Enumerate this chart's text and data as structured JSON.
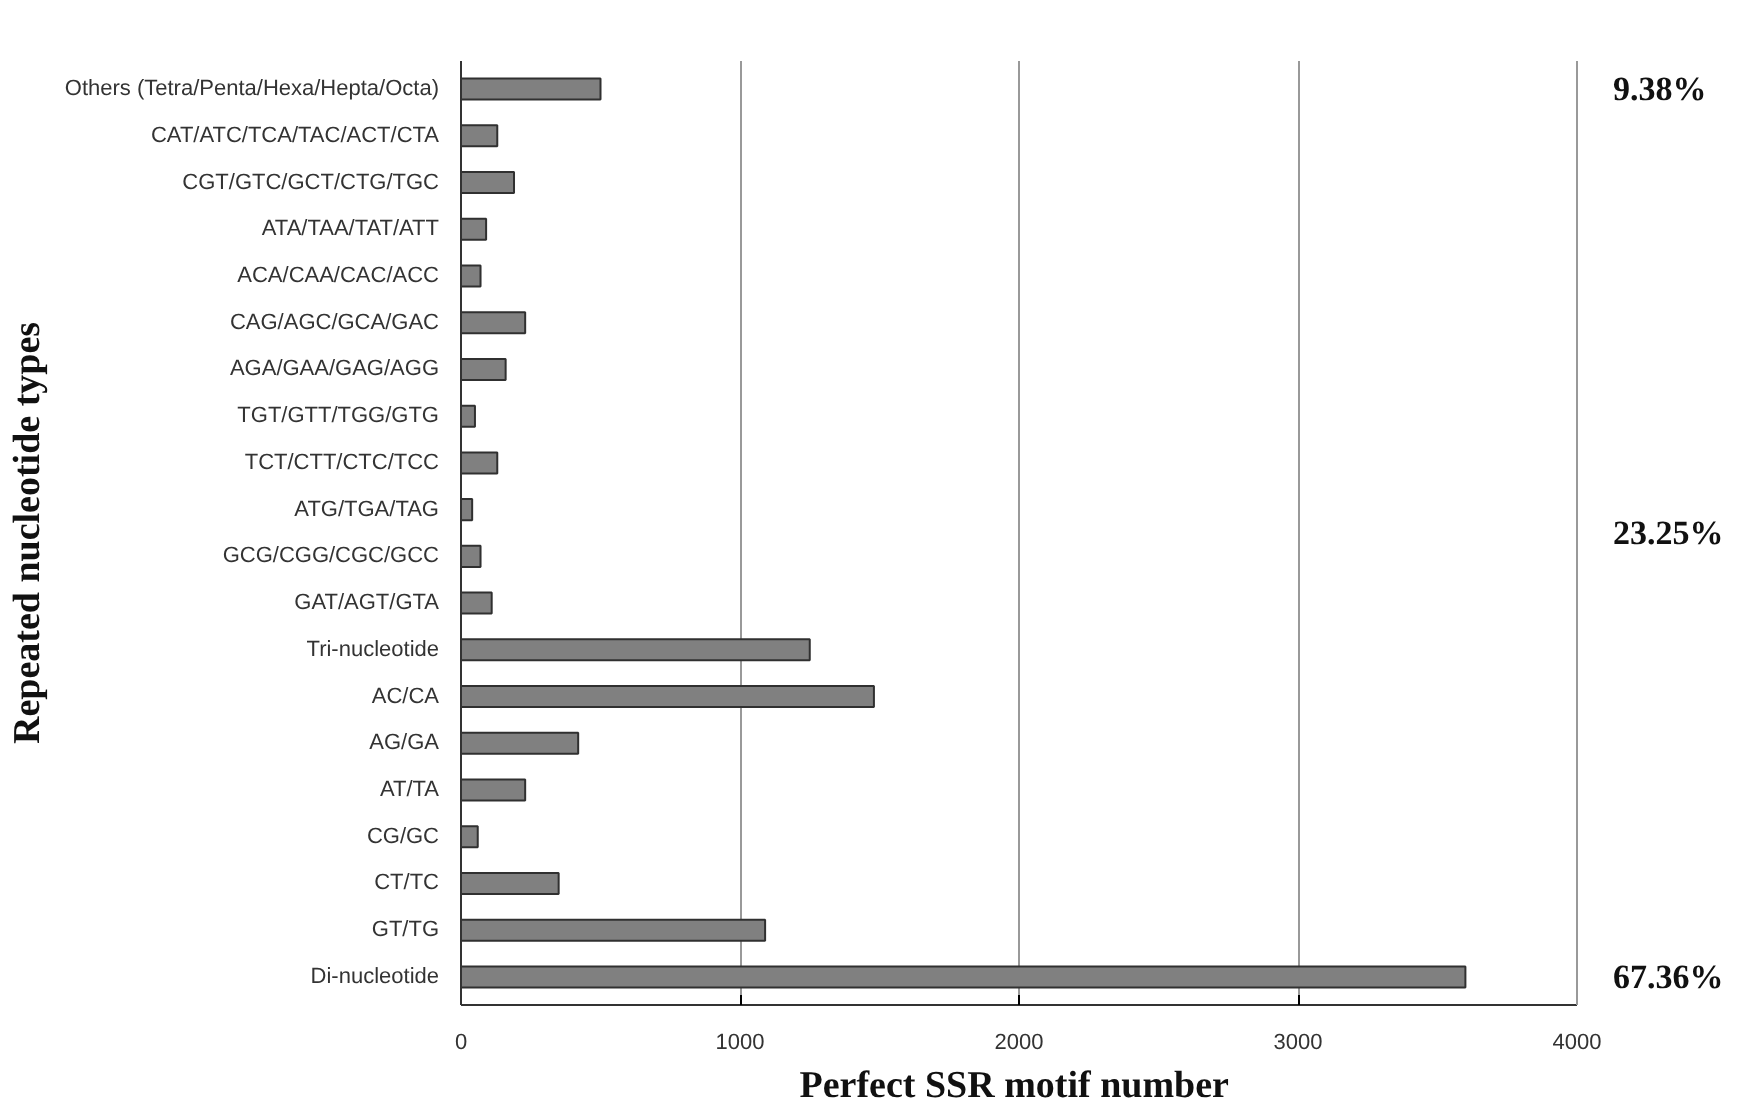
{
  "chart_data": {
    "type": "bar",
    "orientation": "horizontal",
    "xlabel": "Perfect  SSR motif number",
    "ylabel": "Repeated nucleotide types",
    "categories": [
      "Others (Tetra/Penta/Hexa/Hepta/Octa)",
      "CAT/ATC/TCA/TAC/ACT/CTA",
      "CGT/GTC/GCT/CTG/TGC",
      "ATA/TAA/TAT/ATT",
      "ACA/CAA/CAC/ACC",
      "CAG/AGC/GCA/GAC",
      "AGA/GAA/GAG/AGG",
      "TGT/GTT/TGG/GTG",
      "TCT/CTT/CTC/TCC",
      "ATG/TGA/TAG",
      "GCG/CGG/CGC/GCC",
      "GAT/AGT/GTA",
      "Tri-nucleotide",
      "AC/CA",
      "AG/GA",
      "AT/TA",
      "CG/GC",
      "CT/TC",
      "GT/TG",
      "Di-nucleotide"
    ],
    "values": [
      500,
      130,
      190,
      90,
      70,
      230,
      160,
      50,
      130,
      40,
      70,
      110,
      1250,
      1480,
      420,
      230,
      60,
      350,
      1090,
      3600
    ],
    "color": "#808080",
    "xlim": [
      0,
      4000
    ],
    "xticks": [
      0,
      1000,
      2000,
      3000,
      4000
    ],
    "grid": "x",
    "annotations": [
      "9.38%",
      "23.25%",
      "67.36%"
    ]
  }
}
